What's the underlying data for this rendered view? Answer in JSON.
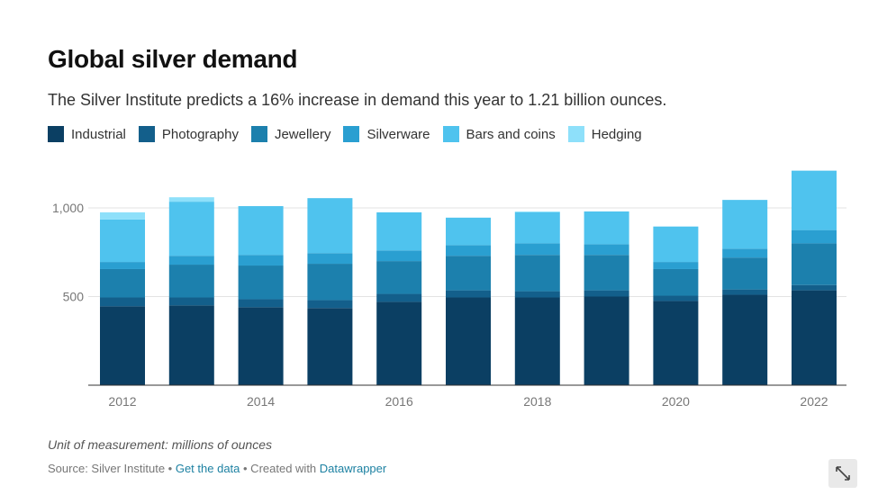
{
  "title": "Global silver demand",
  "subtitle": "The Silver Institute predicts a 16% increase in demand this year to 1.21 billion ounces.",
  "note": "Unit of measurement: millions of ounces",
  "footer": {
    "source": "Source: Silver Institute",
    "sep1": " • ",
    "get_data": "Get the data",
    "sep2": " • Created with ",
    "datawrapper": "Datawrapper"
  },
  "icons": {
    "expand": "expand-icon"
  },
  "chart_data": {
    "type": "bar",
    "stacked": true,
    "categories": [
      "2012",
      "2013",
      "2014",
      "2015",
      "2016",
      "2017",
      "2018",
      "2019",
      "2020",
      "2021",
      "2022"
    ],
    "x_tick_labels": [
      "2012",
      "2014",
      "2016",
      "2018",
      "2020",
      "2022"
    ],
    "series": [
      {
        "name": "Industrial",
        "color": "#0b3f63",
        "values": [
          445,
          450,
          440,
          435,
          470,
          495,
          495,
          500,
          475,
          510,
          535
        ]
      },
      {
        "name": "Photography",
        "color": "#135f8b",
        "values": [
          50,
          45,
          45,
          45,
          45,
          40,
          35,
          35,
          30,
          30,
          30
        ]
      },
      {
        "name": "Jewellery",
        "color": "#1c80ad",
        "values": [
          160,
          185,
          190,
          205,
          185,
          195,
          205,
          200,
          150,
          180,
          235
        ]
      },
      {
        "name": "Silverware",
        "color": "#2a9fd1",
        "values": [
          40,
          50,
          60,
          60,
          60,
          60,
          65,
          60,
          40,
          50,
          75
        ]
      },
      {
        "name": "Bars and coins",
        "color": "#4fc3ee",
        "values": [
          240,
          305,
          275,
          310,
          215,
          155,
          175,
          185,
          200,
          275,
          335
        ]
      },
      {
        "name": "Hedging",
        "color": "#8ee0fa",
        "values": [
          40,
          25,
          0,
          0,
          0,
          0,
          5,
          0,
          0,
          0,
          0
        ]
      }
    ],
    "yticks": [
      500,
      1000
    ],
    "ytick_labels": [
      "500",
      "1,000"
    ],
    "ylim": [
      0,
      1250
    ],
    "grid": true,
    "legend": "top"
  }
}
